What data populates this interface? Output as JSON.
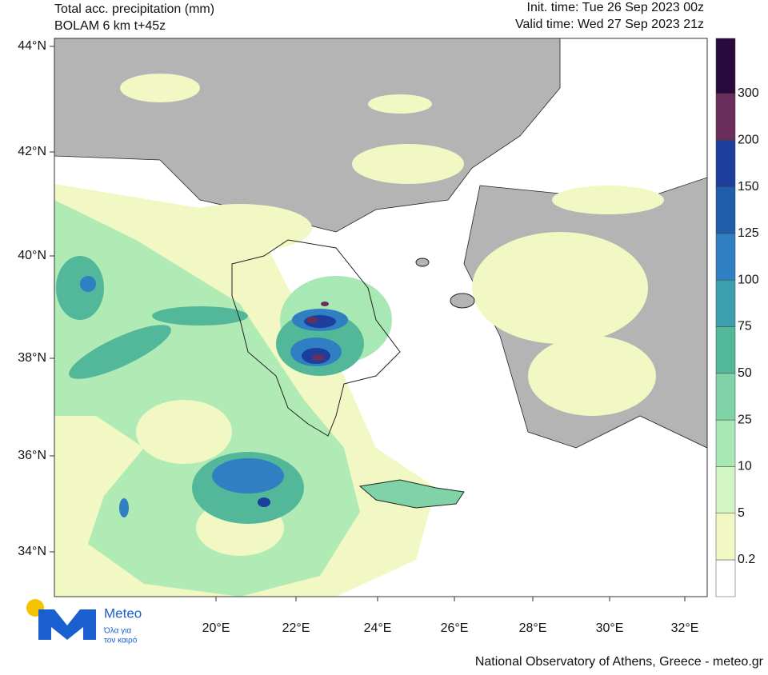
{
  "header": {
    "title_lines": [
      "Total acc. precipitation (mm)",
      "BOLAM 6 km t+45z"
    ],
    "time_lines": [
      "Init. time: Tue 26 Sep 2023 00z",
      "Valid time: Wed 27 Sep 2023 21z"
    ]
  },
  "map": {
    "lat_labels": [
      "44°N",
      "42°N",
      "40°N",
      "38°N",
      "36°N",
      "34°N"
    ],
    "lon_labels": [
      "20°E",
      "22°E",
      "24°E",
      "26°E",
      "28°E",
      "30°E",
      "32°E"
    ]
  },
  "colorbar": {
    "levels": [
      0.2,
      5,
      10,
      25,
      50,
      75,
      100,
      125,
      150,
      200,
      300
    ],
    "colors": [
      "#ffffff",
      "#f2f8c4",
      "#d2f5c4",
      "#a8e8b4",
      "#7fd3a6",
      "#52b899",
      "#3c9fb0",
      "#2f7fc2",
      "#1f5ea8",
      "#1c3f9e",
      "#6b2d5c",
      "#2a0a3d"
    ]
  },
  "logo": {
    "name": "Meteo",
    "tagline": [
      "Όλα για",
      "τον καιρό"
    ]
  },
  "footer": "National Observatory of Athens, Greece - meteo.gr"
}
